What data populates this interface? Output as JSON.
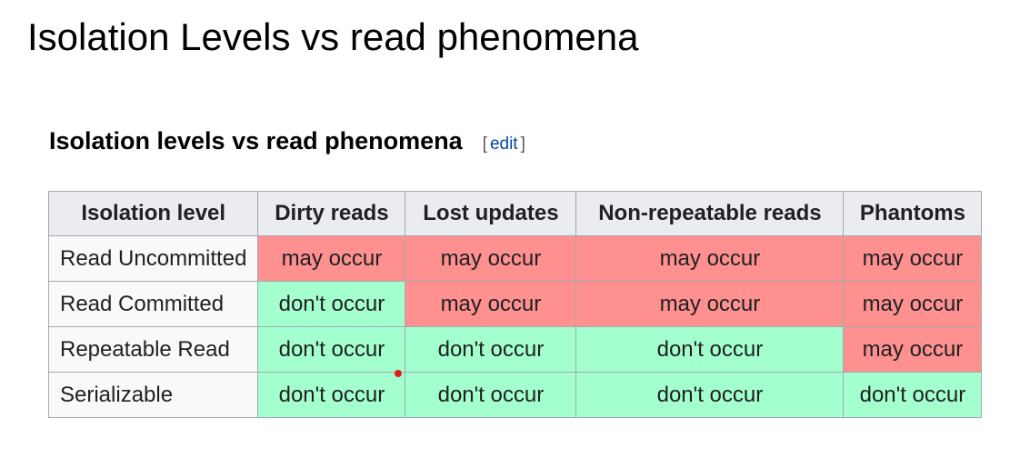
{
  "slide": {
    "title": "Isolation Levels vs read phenomena"
  },
  "section": {
    "title": "Isolation levels vs read phenomena",
    "edit_open": "[",
    "edit_label": "edit",
    "edit_close": "]"
  },
  "table": {
    "headers": [
      "Isolation level",
      "Dirty reads",
      "Lost updates",
      "Non-repeatable reads",
      "Phantoms"
    ],
    "rows": [
      {
        "level": "Read Uncommitted",
        "cells": [
          "may occur",
          "may occur",
          "may occur",
          "may occur"
        ]
      },
      {
        "level": "Read Committed",
        "cells": [
          "don't occur",
          "may occur",
          "may occur",
          "may occur"
        ]
      },
      {
        "level": "Repeatable Read",
        "cells": [
          "don't occur",
          "don't occur",
          "don't occur",
          "may occur"
        ]
      },
      {
        "level": "Serializable",
        "cells": [
          "don't occur",
          "don't occur",
          "don't occur",
          "don't occur"
        ]
      }
    ]
  },
  "colors": {
    "may_occur": "#ff9090",
    "dont_occur": "#a3ffcd",
    "header_bg": "#eaecf0",
    "cursor": "#e0201c"
  }
}
